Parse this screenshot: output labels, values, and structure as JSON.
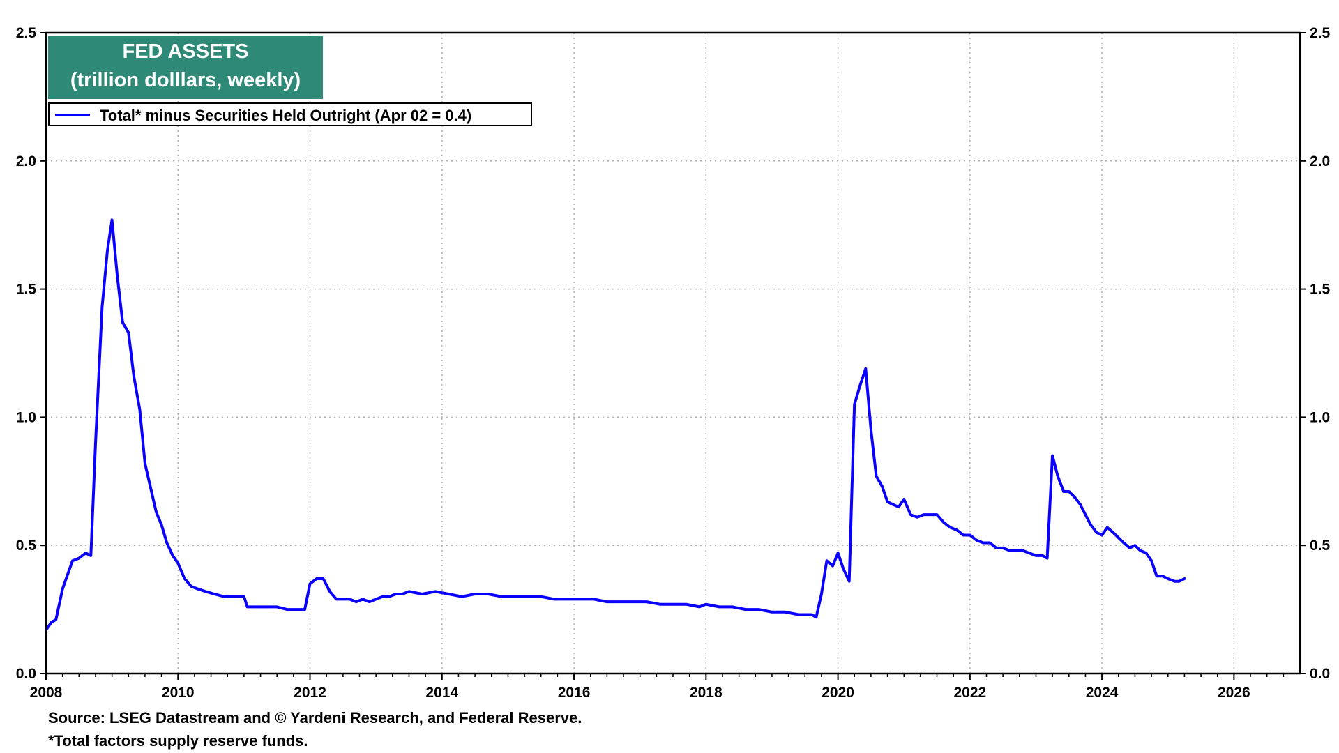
{
  "title": {
    "line1": "FED ASSETS",
    "line2": "(trillion dolllars, weekly)"
  },
  "legend": {
    "label": "Total* minus Securities Held Outright (Apr 02 = 0.4)"
  },
  "footnotes": {
    "source": "Source: LSEG Datastream and © Yardeni Research, and Federal Reserve.",
    "note": "*Total factors supply reserve funds."
  },
  "colors": {
    "title_bg": "#2e8a76",
    "series_line": "#0a00ff",
    "grid": "#b0b0b0"
  },
  "chart_data": {
    "type": "line",
    "title": "FED ASSETS",
    "subtitle": "(trillion dolllars, weekly)",
    "xlim": [
      2008,
      2027
    ],
    "ylim": [
      0,
      2.5
    ],
    "x_ticks": [
      "2008",
      "2010",
      "2012",
      "2014",
      "2016",
      "2018",
      "2020",
      "2022",
      "2024",
      "2026"
    ],
    "y_ticks": [
      "0.0",
      "0.5",
      "1.0",
      "1.5",
      "2.0",
      "2.5"
    ],
    "grid": true,
    "legend_position": "top-left",
    "series": [
      {
        "name": "Total* minus Securities Held Outright (Apr 02 = 0.4)",
        "x": [
          2008.0,
          2008.08,
          2008.15,
          2008.25,
          2008.4,
          2008.5,
          2008.6,
          2008.68,
          2008.75,
          2008.85,
          2008.93,
          2009.0,
          2009.08,
          2009.16,
          2009.25,
          2009.33,
          2009.42,
          2009.5,
          2009.58,
          2009.67,
          2009.75,
          2009.83,
          2009.92,
          2010.0,
          2010.1,
          2010.2,
          2010.3,
          2010.42,
          2010.55,
          2010.7,
          2010.85,
          2011.0,
          2011.05,
          2011.2,
          2011.35,
          2011.5,
          2011.65,
          2011.8,
          2011.92,
          2012.0,
          2012.1,
          2012.2,
          2012.3,
          2012.4,
          2012.5,
          2012.6,
          2012.7,
          2012.8,
          2012.9,
          2013.0,
          2013.1,
          2013.2,
          2013.3,
          2013.4,
          2013.5,
          2013.7,
          2013.9,
          2014.1,
          2014.3,
          2014.5,
          2014.7,
          2014.9,
          2015.1,
          2015.3,
          2015.5,
          2015.7,
          2015.9,
          2016.1,
          2016.3,
          2016.5,
          2016.7,
          2016.9,
          2017.1,
          2017.3,
          2017.5,
          2017.7,
          2017.9,
          2018.0,
          2018.2,
          2018.4,
          2018.6,
          2018.8,
          2019.0,
          2019.2,
          2019.4,
          2019.6,
          2019.67,
          2019.75,
          2019.83,
          2019.92,
          2020.0,
          2020.08,
          2020.17,
          2020.25,
          2020.33,
          2020.42,
          2020.5,
          2020.58,
          2020.67,
          2020.75,
          2020.83,
          2020.92,
          2021.0,
          2021.1,
          2021.2,
          2021.3,
          2021.4,
          2021.5,
          2021.6,
          2021.7,
          2021.8,
          2021.9,
          2022.0,
          2022.1,
          2022.2,
          2022.3,
          2022.4,
          2022.5,
          2022.6,
          2022.7,
          2022.8,
          2022.9,
          2023.0,
          2023.1,
          2023.17,
          2023.25,
          2023.33,
          2023.42,
          2023.5,
          2023.58,
          2023.67,
          2023.75,
          2023.83,
          2023.92,
          2024.0,
          2024.08,
          2024.17,
          2024.25,
          2024.33,
          2024.42,
          2024.5,
          2024.58,
          2024.67,
          2024.75,
          2024.83,
          2024.92,
          2025.0,
          2025.1,
          2025.17,
          2025.25
        ],
        "values": [
          0.17,
          0.2,
          0.21,
          0.33,
          0.44,
          0.45,
          0.47,
          0.46,
          0.9,
          1.43,
          1.65,
          1.77,
          1.55,
          1.37,
          1.33,
          1.16,
          1.03,
          0.82,
          0.73,
          0.63,
          0.58,
          0.51,
          0.46,
          0.43,
          0.37,
          0.34,
          0.33,
          0.32,
          0.31,
          0.3,
          0.3,
          0.3,
          0.26,
          0.26,
          0.26,
          0.26,
          0.25,
          0.25,
          0.25,
          0.35,
          0.37,
          0.37,
          0.32,
          0.29,
          0.29,
          0.29,
          0.28,
          0.29,
          0.28,
          0.29,
          0.3,
          0.3,
          0.31,
          0.31,
          0.32,
          0.31,
          0.32,
          0.31,
          0.3,
          0.31,
          0.31,
          0.3,
          0.3,
          0.3,
          0.3,
          0.29,
          0.29,
          0.29,
          0.29,
          0.28,
          0.28,
          0.28,
          0.28,
          0.27,
          0.27,
          0.27,
          0.26,
          0.27,
          0.26,
          0.26,
          0.25,
          0.25,
          0.24,
          0.24,
          0.23,
          0.23,
          0.22,
          0.31,
          0.44,
          0.42,
          0.47,
          0.41,
          0.36,
          1.05,
          1.12,
          1.19,
          0.95,
          0.77,
          0.73,
          0.67,
          0.66,
          0.65,
          0.68,
          0.62,
          0.61,
          0.62,
          0.62,
          0.62,
          0.59,
          0.57,
          0.56,
          0.54,
          0.54,
          0.52,
          0.51,
          0.51,
          0.49,
          0.49,
          0.48,
          0.48,
          0.48,
          0.47,
          0.46,
          0.46,
          0.45,
          0.85,
          0.77,
          0.71,
          0.71,
          0.69,
          0.66,
          0.62,
          0.58,
          0.55,
          0.54,
          0.57,
          0.55,
          0.53,
          0.51,
          0.49,
          0.5,
          0.48,
          0.47,
          0.44,
          0.38,
          0.38,
          0.37,
          0.36,
          0.36,
          0.37
        ]
      }
    ]
  }
}
